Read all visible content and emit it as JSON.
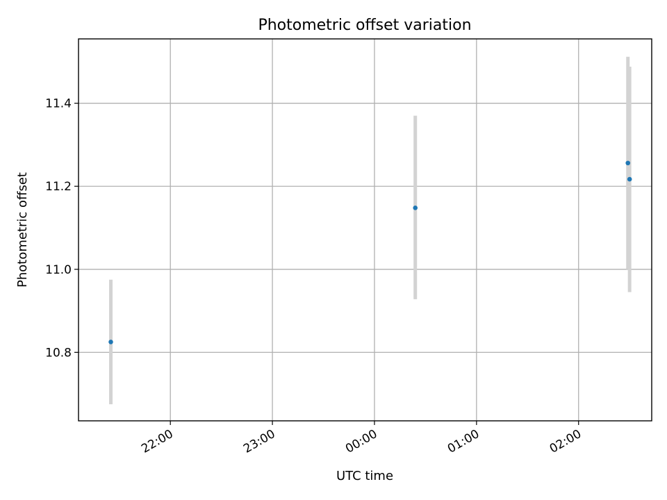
{
  "chart_data": {
    "type": "scatter",
    "title": "Photometric offset variation",
    "xlabel": "UTC time",
    "ylabel": "Photometric offset",
    "x_is_time": true,
    "xlim": [
      "21:06",
      "02:43"
    ],
    "ylim": [
      10.635,
      11.555
    ],
    "x_ticks": [
      "22:00",
      "23:00",
      "00:00",
      "01:00",
      "02:00"
    ],
    "y_ticks": [
      10.8,
      11.0,
      11.2,
      11.4
    ],
    "y_tick_labels": [
      "10.8",
      "11.0",
      "11.2",
      "11.4"
    ],
    "grid": true,
    "colors": {
      "points": "#1f77b4",
      "error_bars": "#d3d3d3",
      "grid": "#b0b0b0"
    },
    "points": [
      {
        "x": "21:25",
        "y": 10.825,
        "yerr_low": 10.675,
        "yerr_high": 10.975
      },
      {
        "x": "00:24",
        "y": 11.148,
        "yerr_low": 10.928,
        "yerr_high": 11.37
      },
      {
        "x": "02:29",
        "y": 11.256,
        "yerr_low": 11.0,
        "yerr_high": 11.512
      },
      {
        "x": "02:30",
        "y": 11.217,
        "yerr_low": 10.945,
        "yerr_high": 11.488
      }
    ]
  }
}
